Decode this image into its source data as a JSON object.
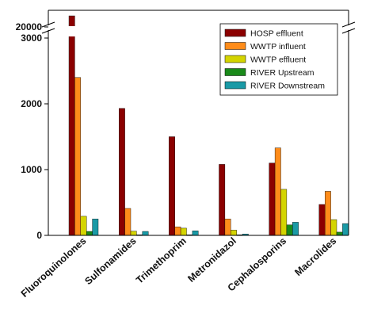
{
  "chart_data": {
    "type": "bar",
    "title": "",
    "xlabel": "",
    "ylabel": "",
    "categories": [
      "Fluoroquinolones",
      "Sulfonamides",
      "Trimethoprim",
      "Metronidazol",
      "Cephalosporins",
      "Macrolides"
    ],
    "series": [
      {
        "name": "HOSP effluent",
        "color": "#8b0000",
        "values": [
          20000,
          1930,
          1500,
          1080,
          1100,
          470
        ]
      },
      {
        "name": "WWTP influent",
        "color": "#ff8c1a",
        "values": [
          2400,
          410,
          130,
          250,
          1330,
          670
        ]
      },
      {
        "name": "WWTP effluent",
        "color": "#d4d400",
        "values": [
          290,
          65,
          110,
          80,
          700,
          240
        ]
      },
      {
        "name": "RIVER Upstream",
        "color": "#1a8a1a",
        "values": [
          60,
          10,
          10,
          10,
          160,
          50
        ]
      },
      {
        "name": "RIVER Downstream",
        "color": "#1a9aa6",
        "values": [
          250,
          60,
          70,
          20,
          200,
          180
        ]
      }
    ],
    "ylim": [
      0,
      3000
    ],
    "y_break": {
      "lower_max": 3000,
      "upper_value": 20000
    },
    "yticks": [
      0,
      1000,
      2000,
      3000,
      20000
    ],
    "grid": false,
    "legend_position": "top-right"
  }
}
